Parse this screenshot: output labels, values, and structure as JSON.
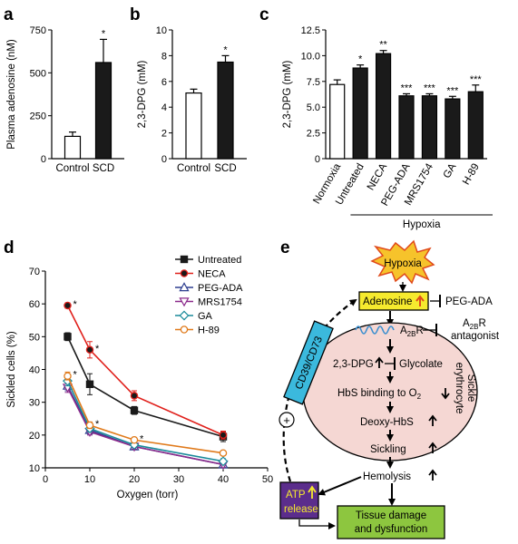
{
  "panels": {
    "a": "a",
    "b": "b",
    "c": "c",
    "d": "d",
    "e": "e"
  },
  "chart_data": [
    {
      "id": "a",
      "type": "bar",
      "categories": [
        "Control",
        "SCD"
      ],
      "values": [
        130,
        560
      ],
      "errors": [
        25,
        135
      ],
      "fills": [
        "#ffffff",
        "#1a1a1a"
      ],
      "stars": [
        "",
        "*"
      ],
      "ylabel": "Plasma adenosine (nM)",
      "ylim": [
        0,
        750
      ],
      "yticks": [
        0,
        250,
        500,
        750
      ]
    },
    {
      "id": "b",
      "type": "bar",
      "categories": [
        "Control",
        "SCD"
      ],
      "values": [
        5.1,
        7.5
      ],
      "errors": [
        0.3,
        0.5
      ],
      "fills": [
        "#ffffff",
        "#1a1a1a"
      ],
      "stars": [
        "",
        "*"
      ],
      "ylabel": "2,3-DPG (mM)",
      "ylim": [
        0,
        10
      ],
      "yticks": [
        0,
        2,
        4,
        6,
        8,
        10
      ]
    },
    {
      "id": "c",
      "type": "bar",
      "categories": [
        "Normoxia",
        "Untreated",
        "NECA",
        "PEG-ADA",
        "MRS1754",
        "GA",
        "H-89"
      ],
      "values": [
        7.2,
        8.8,
        10.2,
        6.1,
        6.1,
        5.8,
        6.5
      ],
      "errors": [
        0.45,
        0.3,
        0.3,
        0.2,
        0.2,
        0.25,
        0.65
      ],
      "fills": [
        "#ffffff",
        "#1a1a1a",
        "#1a1a1a",
        "#1a1a1a",
        "#1a1a1a",
        "#1a1a1a",
        "#1a1a1a"
      ],
      "stars": [
        "",
        "*",
        "**",
        "***",
        "***",
        "***",
        "***"
      ],
      "ylabel": "2,3-DPG (mM)",
      "ylim": [
        0,
        12.5
      ],
      "yticks": [
        0,
        2.5,
        5.0,
        7.5,
        10.0,
        12.5
      ],
      "ytick_labels": [
        "0",
        "2.5",
        "5.0",
        "7.5",
        "10.0",
        "12.5"
      ],
      "group_label": "Hypoxia"
    },
    {
      "id": "d",
      "type": "line",
      "x": [
        5,
        10,
        20,
        40
      ],
      "series": [
        {
          "name": "Untreated",
          "values": [
            50,
            35.5,
            27.5,
            19.5
          ],
          "errors": [
            1.2,
            3.2,
            1.2,
            1.5
          ],
          "color": "#1a1a1a",
          "marker": "square",
          "fill": "#1a1a1a"
        },
        {
          "name": "NECA",
          "values": [
            59.5,
            46,
            32,
            20
          ],
          "errors": [
            0.8,
            2.5,
            1.5,
            1.2
          ],
          "color": "#e0201b",
          "marker": "circle",
          "fill": "#1a1a1a"
        },
        {
          "name": "PEG-ADA",
          "values": [
            35,
            21.5,
            16.5,
            11
          ],
          "errors": [
            1.5,
            1.2,
            0.8,
            0.8
          ],
          "color": "#2e3f8f",
          "marker": "triangle-up",
          "fill": "none"
        },
        {
          "name": "MRS1754",
          "values": [
            34.5,
            21,
            16.5,
            11
          ],
          "errors": [
            1.5,
            1.0,
            0.8,
            0.8
          ],
          "color": "#8b2a8b",
          "marker": "triangle-down",
          "fill": "none"
        },
        {
          "name": "GA",
          "values": [
            36.5,
            22,
            17,
            12
          ],
          "errors": [
            1.5,
            1.0,
            0.8,
            0.8
          ],
          "color": "#1a8a9a",
          "marker": "diamond",
          "fill": "none"
        },
        {
          "name": "H-89",
          "values": [
            38,
            23,
            18.5,
            14.5
          ],
          "errors": [
            1.2,
            1.0,
            0.8,
            0.6
          ],
          "color": "#e07a1b",
          "marker": "circle",
          "fill": "none"
        }
      ],
      "stars": [
        {
          "label": "*",
          "x": 5,
          "y": 59.5
        },
        {
          "label": "*",
          "x": 10,
          "y": 46
        },
        {
          "label": "*",
          "x": 5,
          "y": 38
        },
        {
          "label": "*",
          "x": 10,
          "y": 23
        },
        {
          "label": "*",
          "x": 20,
          "y": 18.5
        }
      ],
      "xlabel": "Oxygen (torr)",
      "ylabel": "Sickled cells (%)",
      "xlim": [
        0,
        50
      ],
      "ylim": [
        10,
        70
      ],
      "xticks": [
        0,
        10,
        20,
        30,
        40,
        50
      ],
      "yticks": [
        10,
        20,
        30,
        40,
        50,
        60,
        70
      ],
      "legend": "top-right"
    }
  ],
  "diagram": {
    "hypoxia": "Hypoxia",
    "adenosine": "Adenosine",
    "peg_ada": "PEG-ADA",
    "a2br": "A",
    "a2br_sub": "2B",
    "a2br_r": "R",
    "a2br_antagonist_1": "A",
    "a2br_antagonist_1_sub": "2B",
    "a2br_antagonist_1_r": "R",
    "a2br_antagonist_2": "antagonist",
    "dpg": "2,3-DPG",
    "glycolate": "Glycolate",
    "hbs_binding": "HbS binding to O",
    "hbs_binding_sub": "2",
    "deoxy_hbs": "Deoxy-HbS",
    "sickling": "Sickling",
    "hemolysis": "Hemolysis",
    "sickle_1": "Sickle",
    "sickle_2": "erythrocyte",
    "cd39": "CD39/CD73",
    "plus": "+",
    "atp_1": "ATP",
    "atp_2": "release",
    "tissue_1": "Tissue damage",
    "tissue_2": "and dysfunction",
    "colors": {
      "hypoxia_fill": "#f6c32b",
      "adenosine_fill": "#f6ea2e",
      "cell_fill": "#f5d7d3",
      "cd39_fill": "#3bb9dd",
      "atp_fill": "#5b2d8c",
      "tissue_fill": "#8dc63f",
      "up_arrow": "#e04a1b"
    }
  }
}
